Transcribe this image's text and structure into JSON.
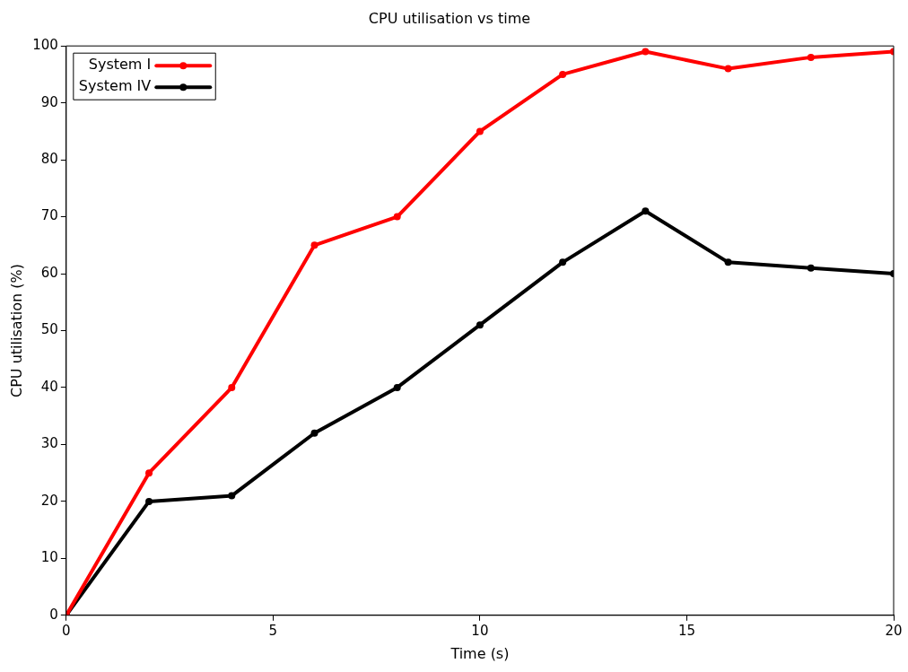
{
  "chart_data": {
    "type": "line",
    "title": "CPU utilisation vs time",
    "xlabel": "Time (s)",
    "ylabel": "CPU utilisation (%)",
    "x": [
      0,
      2,
      4,
      6,
      8,
      10,
      12,
      14,
      16,
      18,
      20
    ],
    "series": [
      {
        "name": "System I",
        "color": "#ff0000",
        "values": [
          0,
          25,
          40,
          65,
          70,
          85,
          95,
          99,
          96,
          98,
          99
        ]
      },
      {
        "name": "System IV",
        "color": "#000000",
        "values": [
          0,
          20,
          21,
          32,
          40,
          51,
          62,
          71,
          62,
          61,
          60
        ]
      }
    ],
    "xlim": [
      0,
      20
    ],
    "xticks": [
      0,
      5,
      10,
      15,
      20
    ],
    "ylim": [
      0,
      100
    ],
    "yticks": [
      0,
      10,
      20,
      30,
      40,
      50,
      60,
      70,
      80,
      90,
      100
    ],
    "grid": false,
    "legend": "top left",
    "marker": "circle",
    "line_style": "solid"
  }
}
